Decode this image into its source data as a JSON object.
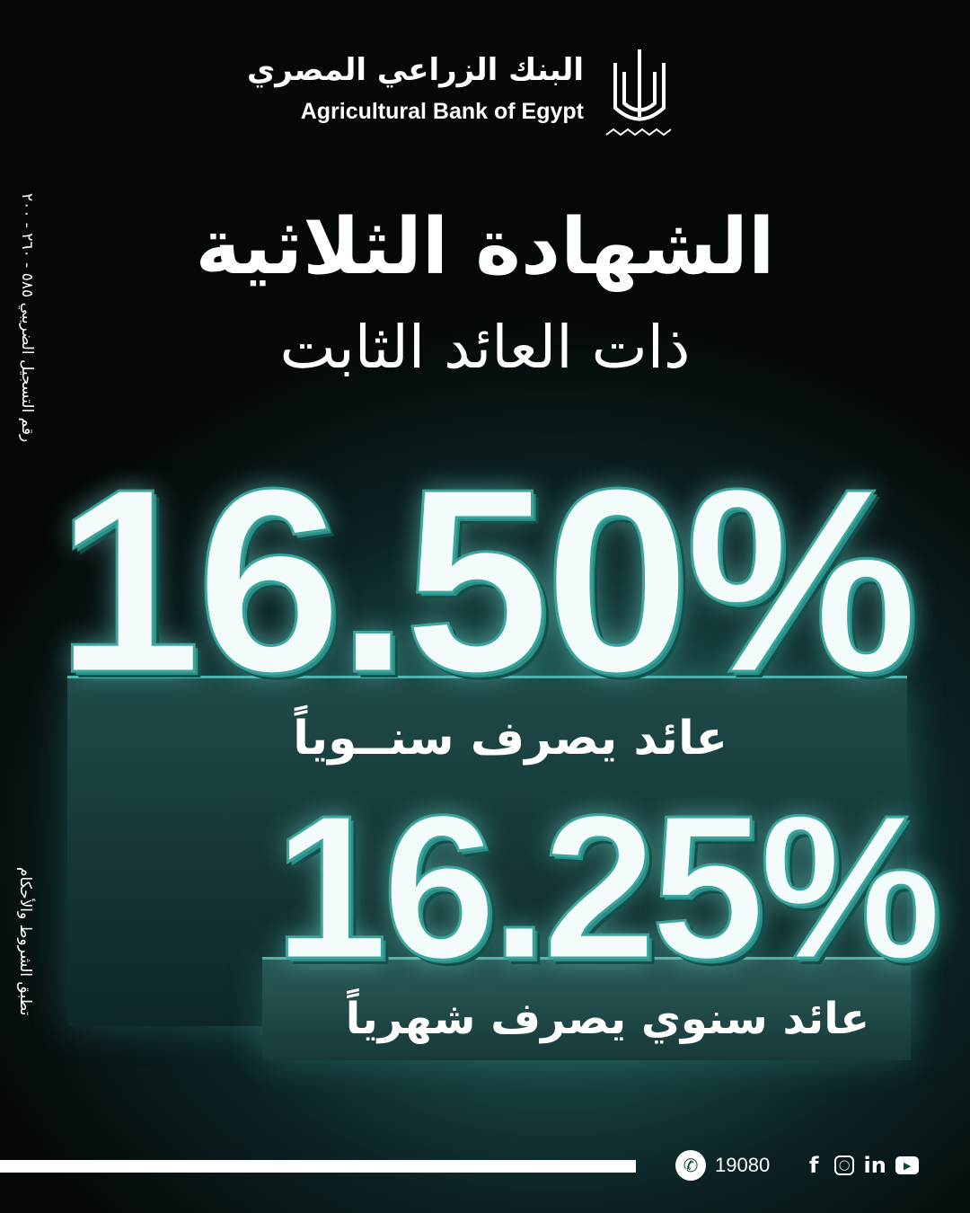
{
  "brand": {
    "name_ar": "البنك الزراعي المصري",
    "name_en": "Agricultural Bank of Egypt"
  },
  "headline": {
    "title": "الشهادة الثلاثية",
    "subtitle": "ذات العائد الثابت"
  },
  "offers": [
    {
      "rate": "16.50%",
      "label": "عائد يصرف سنــوياً"
    },
    {
      "rate": "16.25%",
      "label": "عائد سنوي يصرف شهرياً"
    }
  ],
  "side": {
    "registration": "رقم التسجيل الضريبي ٥٨٥ - ٢٦٠ - ٢٠٠",
    "terms": "تطبق الشروط والأحكام"
  },
  "footer": {
    "hotline": "19080",
    "icons": [
      "phone-icon",
      "facebook-icon",
      "instagram-icon",
      "linkedin-icon",
      "youtube-icon"
    ]
  },
  "colors": {
    "accent": "#3aa59c",
    "background": "#050808"
  }
}
